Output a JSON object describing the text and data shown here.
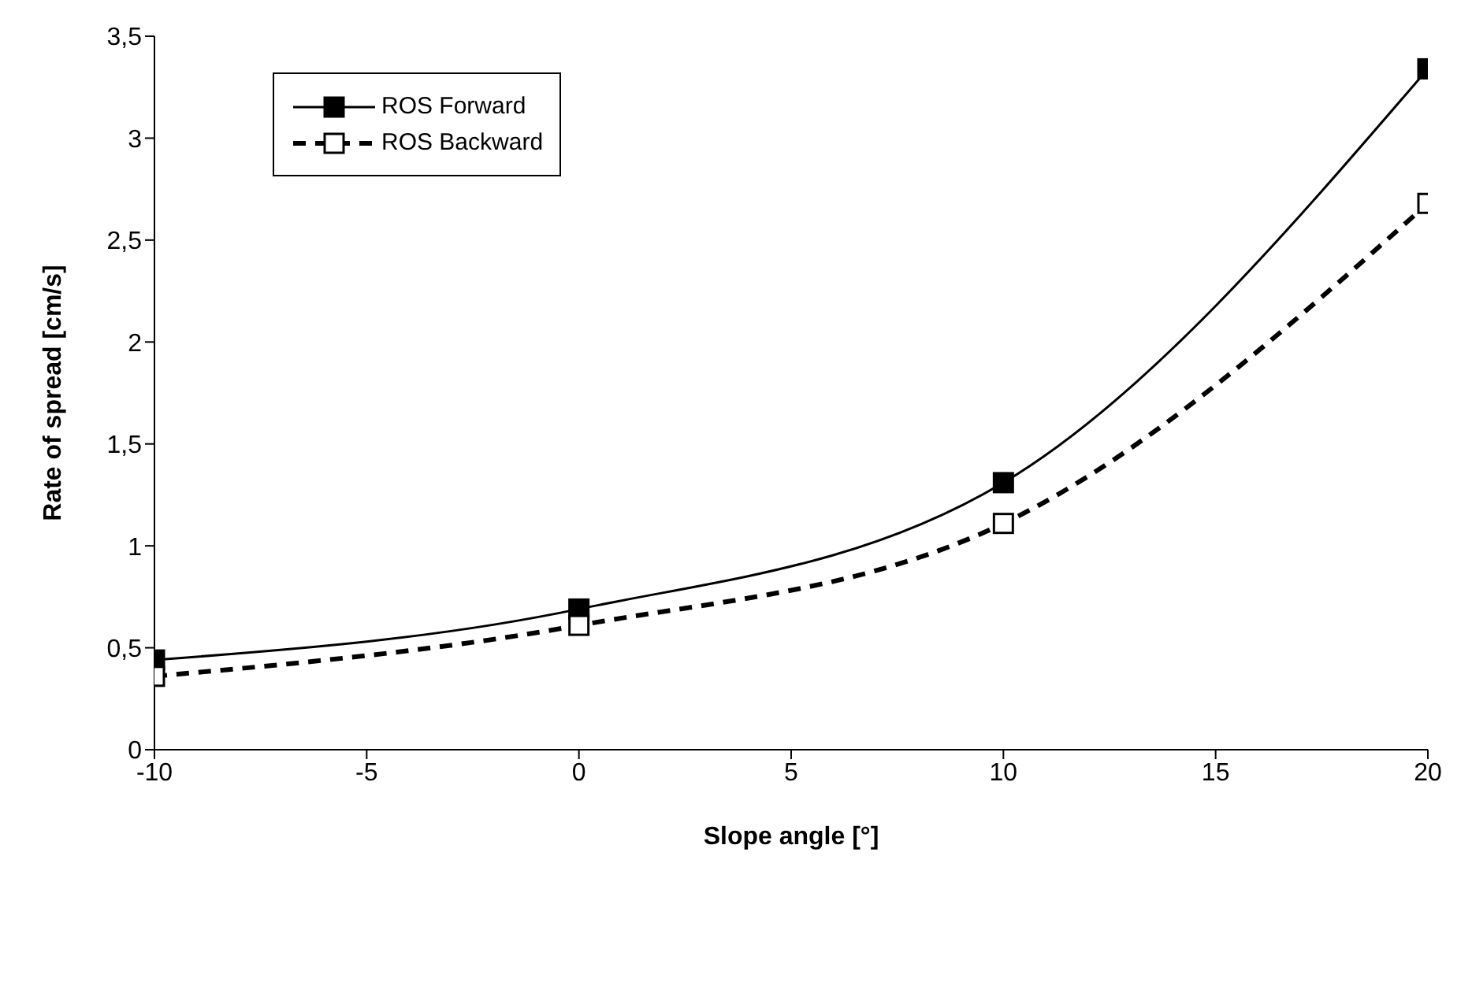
{
  "chart_data": {
    "type": "line",
    "xlabel": "Slope angle [°]",
    "ylabel": "Rate of spread [cm/s]",
    "x": [
      -10,
      0,
      10,
      20
    ],
    "series": [
      {
        "name": "ROS Forward",
        "color": "#000000",
        "values": [
          0.44,
          0.69,
          1.31,
          3.34
        ],
        "line_style": "solid"
      },
      {
        "name": "ROS Backward",
        "color": "#000000",
        "values": [
          0.36,
          0.61,
          1.11,
          2.68
        ],
        "line_style": "dashed"
      }
    ],
    "xlim": [
      -10,
      20
    ],
    "xticks": [
      -10,
      -5,
      0,
      5,
      10,
      15,
      20
    ],
    "ylim": [
      0,
      3.5
    ],
    "yticks": [
      0,
      {
        "value": 0.5,
        "label": "0,5"
      },
      1,
      {
        "value": 1.5,
        "label": "1,5"
      },
      2,
      {
        "value": 2.5,
        "label": "2,5"
      },
      3,
      {
        "value": 3.5,
        "label": "3,5"
      }
    ],
    "grid": false,
    "legend": "top left",
    "marker": "square"
  }
}
